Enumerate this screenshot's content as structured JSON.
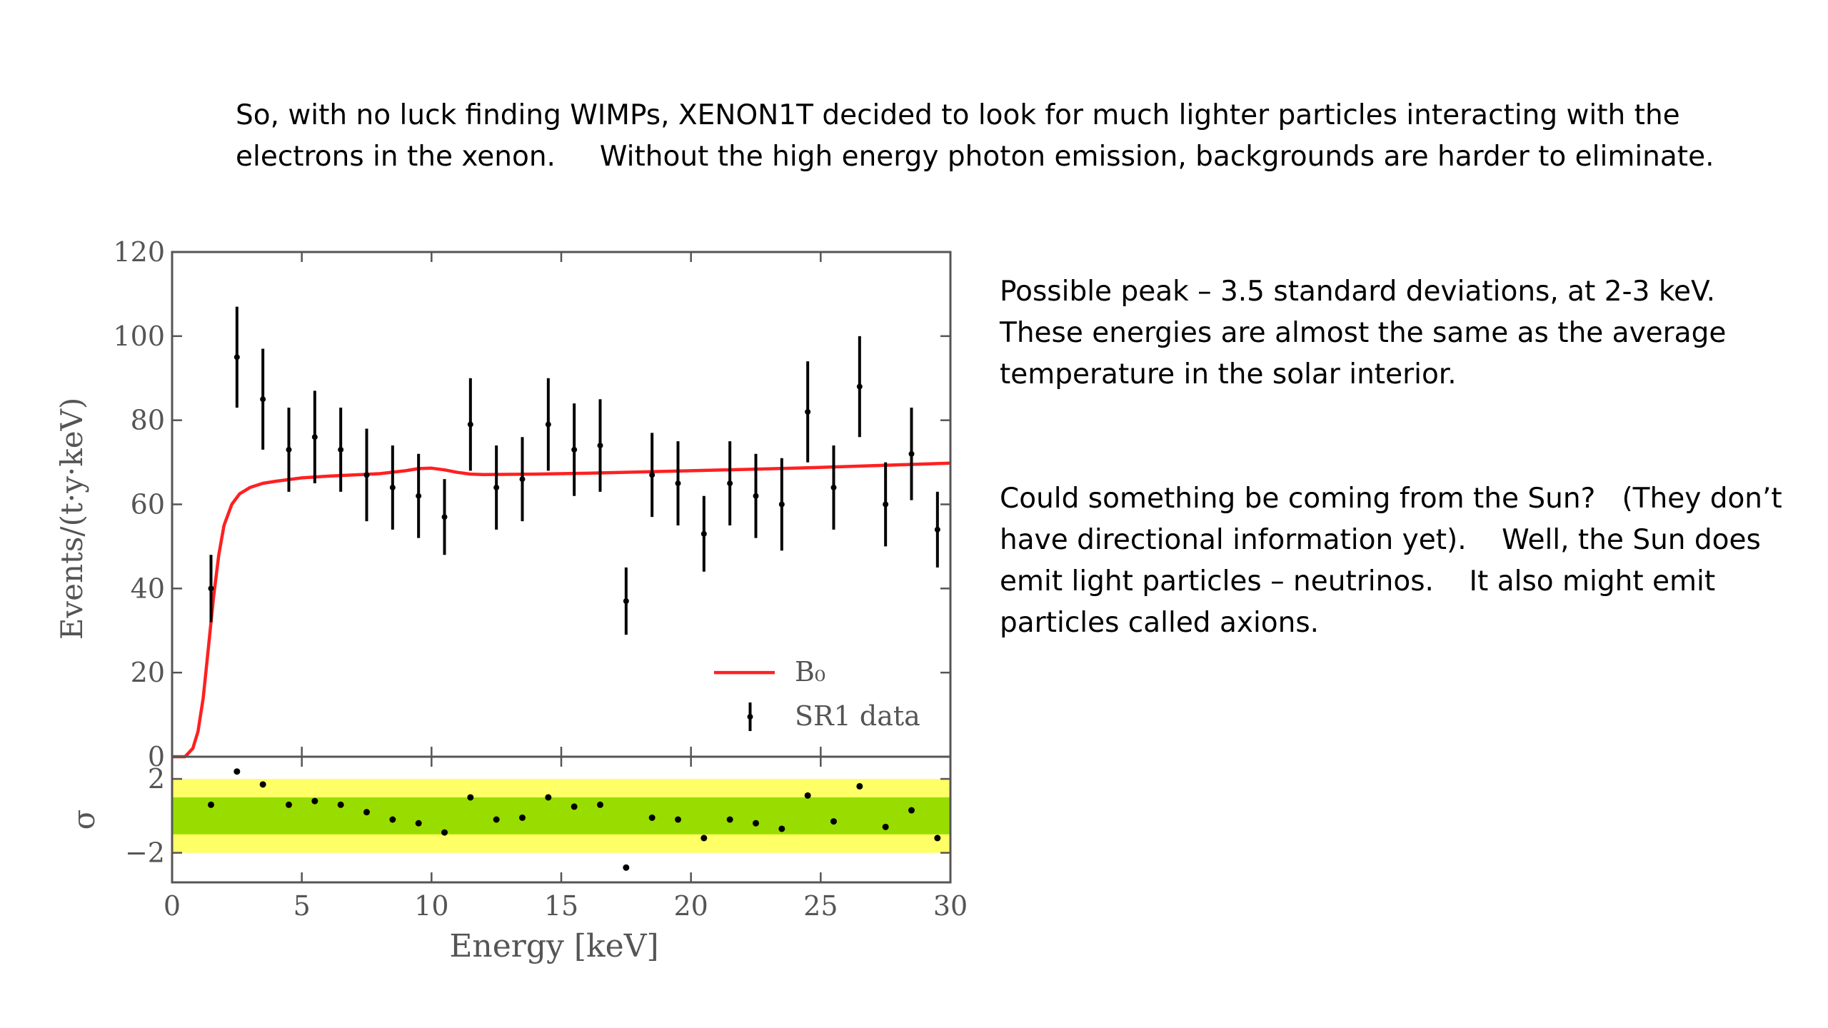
{
  "slide": {
    "intro_lines": [
      "So, with no luck finding WIMPs, XENON1T decided to look for much lighter particles interacting with the",
      "electrons in the xenon.     Without the high energy photon emission, backgrounds are harder to eliminate."
    ],
    "note_1_lines": [
      "Possible peak – 3.5 standard deviations, at 2-3 keV.",
      "These energies are almost the same as the average",
      "temperature in the solar interior."
    ],
    "note_2_lines": [
      "Could something be coming from the Sun?   (They don’t",
      "have directional information yet).    Well, the Sun does",
      "emit light particles – neutrinos.    It also might emit",
      "particles called axions."
    ]
  },
  "chart_data": {
    "type": "scatter",
    "xlabel": "Energy [keV]",
    "ylabel": "Events/(t·y·keV)",
    "xlim": [
      0,
      30
    ],
    "ylim": [
      0,
      120
    ],
    "x_ticks": [
      "0",
      "5",
      "10",
      "15",
      "20",
      "25",
      "30"
    ],
    "y_ticks": [
      "0",
      "20",
      "40",
      "60",
      "80",
      "100",
      "120"
    ],
    "legend": {
      "placement": "lower-right",
      "entries": [
        "B₀",
        "SR1 data"
      ]
    },
    "colors": {
      "model": "#ff2020",
      "data": "#000000",
      "band_outer": "#ffff66",
      "band_inner": "#99dd00"
    },
    "series": [
      {
        "name": "SR1 data",
        "kind": "errorbar",
        "x": [
          1.5,
          2.5,
          3.5,
          4.5,
          5.5,
          6.5,
          7.5,
          8.5,
          9.5,
          10.5,
          11.5,
          12.5,
          13.5,
          14.5,
          15.5,
          16.5,
          17.5,
          18.5,
          19.5,
          20.5,
          21.5,
          22.5,
          23.5,
          24.5,
          25.5,
          26.5,
          27.5,
          28.5,
          29.5
        ],
        "y": [
          40,
          95,
          85,
          73,
          76,
          73,
          67,
          64,
          62,
          57,
          79,
          64,
          66,
          79,
          73,
          74,
          37,
          67,
          65,
          53,
          65,
          62,
          60,
          82,
          64,
          88,
          60,
          72,
          54
        ],
        "err": [
          8,
          12,
          12,
          10,
          11,
          10,
          11,
          10,
          10,
          9,
          11,
          10,
          10,
          11,
          11,
          11,
          8,
          10,
          10,
          9,
          10,
          10,
          11,
          12,
          10,
          12,
          10,
          11,
          9
        ]
      },
      {
        "name": "B₀",
        "kind": "line",
        "x": [
          0,
          0.5,
          0.8,
          1.0,
          1.2,
          1.4,
          1.6,
          1.8,
          2.0,
          2.3,
          2.6,
          3.0,
          3.5,
          4.0,
          5.0,
          6.0,
          7.0,
          8.0,
          9.0,
          9.5,
          10.0,
          10.5,
          11.0,
          11.5,
          12.0,
          14.0,
          16.0,
          18.0,
          20.0,
          22.0,
          24.0,
          26.0,
          28.0,
          30.0
        ],
        "y": [
          0,
          0,
          2,
          6,
          14,
          26,
          38,
          48,
          55,
          60,
          62.5,
          64,
          65,
          65.5,
          66.3,
          66.7,
          67,
          67.3,
          68,
          68.5,
          68.6,
          68.2,
          67.6,
          67.2,
          67.1,
          67.2,
          67.4,
          67.7,
          68,
          68.3,
          68.6,
          69,
          69.4,
          69.8
        ]
      }
    ],
    "residuals": {
      "ylabel": "σ",
      "ylim": [
        -3.6,
        3.2
      ],
      "y_ticks": [
        "2",
        "−2"
      ],
      "band_1sigma": [
        -1,
        1
      ],
      "band_2sigma": [
        -2,
        2
      ],
      "x": [
        1.5,
        2.5,
        3.5,
        4.5,
        5.5,
        6.5,
        7.5,
        8.5,
        9.5,
        10.5,
        11.5,
        12.5,
        13.5,
        14.5,
        15.5,
        16.5,
        17.5,
        18.5,
        19.5,
        20.5,
        21.5,
        22.5,
        23.5,
        24.5,
        25.5,
        26.5,
        27.5,
        28.5,
        29.5
      ],
      "y": [
        0.6,
        2.4,
        1.7,
        0.6,
        0.8,
        0.6,
        0.2,
        -0.2,
        -0.4,
        -0.9,
        1.0,
        -0.2,
        -0.1,
        1.0,
        0.5,
        0.6,
        -2.8,
        -0.1,
        -0.2,
        -1.2,
        -0.2,
        -0.4,
        -0.7,
        1.1,
        -0.3,
        1.6,
        -0.6,
        0.3,
        -1.2
      ]
    }
  }
}
